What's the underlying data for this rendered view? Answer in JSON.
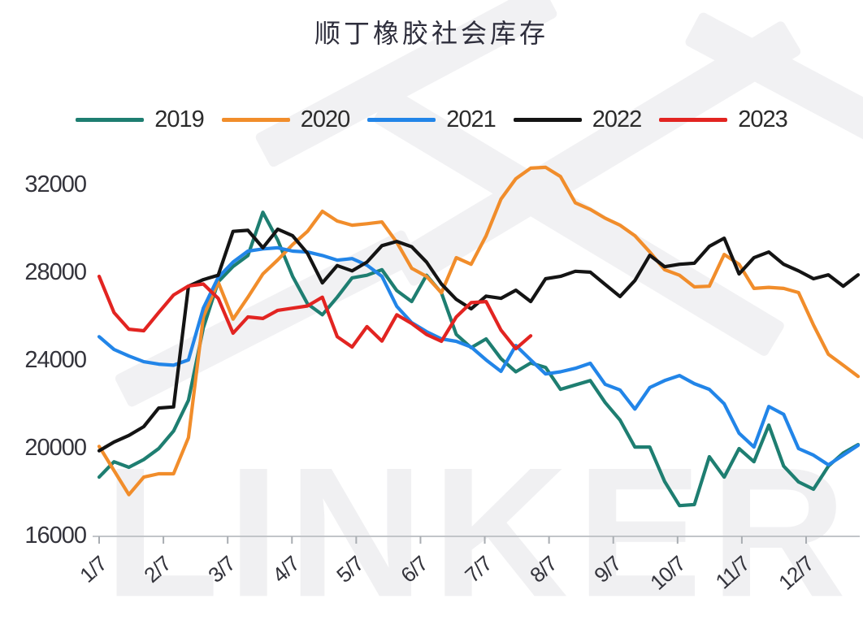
{
  "title": "顺丁橡胶社会库存",
  "watermark": {
    "text": "LINKER"
  },
  "legend": {
    "items": [
      {
        "label": "2019",
        "color": "#1e7e71"
      },
      {
        "label": "2020",
        "color": "#f18d2b"
      },
      {
        "label": "2021",
        "color": "#2285e8"
      },
      {
        "label": "2022",
        "color": "#141414"
      },
      {
        "label": "2023",
        "color": "#e22421"
      }
    ]
  },
  "y_axis": {
    "ticks": [
      "32000",
      "28000",
      "24000",
      "20000",
      "16000"
    ]
  },
  "x_axis": {
    "labels": [
      "1/7",
      "2/7",
      "3/7",
      "4/7",
      "5/7",
      "6/7",
      "7/7",
      "8/7",
      "9/7",
      "10/7",
      "11/7",
      "12/7"
    ]
  },
  "chart_data": {
    "type": "line",
    "title": "顺丁橡胶社会库存",
    "xlabel": "",
    "ylabel": "",
    "x_unit": "weekly points from Jan 7 to Dec 30; axis labeled monthly as month/7",
    "x_tick_labels": [
      "1/7",
      "2/7",
      "3/7",
      "4/7",
      "5/7",
      "6/7",
      "7/7",
      "8/7",
      "9/7",
      "10/7",
      "11/7",
      "12/7"
    ],
    "y_ticks": [
      16000,
      20000,
      24000,
      28000,
      32000
    ],
    "ylim": [
      16000,
      33000
    ],
    "grid": false,
    "legend_position": "top",
    "series": [
      {
        "name": "2019",
        "color": "#1e7e71",
        "values": [
          18700,
          19400,
          19150,
          19500,
          20000,
          20800,
          22200,
          25500,
          27600,
          28300,
          28800,
          30770,
          29500,
          27850,
          26600,
          26100,
          26900,
          27780,
          27900,
          28150,
          27200,
          26700,
          27900,
          27100,
          25200,
          24600,
          25000,
          24100,
          23500,
          23900,
          23700,
          22700,
          22900,
          23100,
          22100,
          21300,
          20070,
          20070,
          18500,
          17400,
          17450,
          19630,
          18700,
          20000,
          19400,
          21070,
          19200,
          18480,
          18150,
          19200,
          19800,
          20180
        ]
      },
      {
        "name": "2020",
        "color": "#f18d2b",
        "values": [
          20100,
          19000,
          17900,
          18700,
          18850,
          18850,
          20500,
          26000,
          27590,
          25900,
          26900,
          27960,
          28600,
          29300,
          29900,
          30815,
          30370,
          30180,
          30250,
          30330,
          29400,
          28220,
          27850,
          27100,
          28700,
          28400,
          29700,
          31370,
          32300,
          32780,
          32820,
          32400,
          31200,
          30900,
          30500,
          30180,
          29700,
          28960,
          28150,
          27900,
          27370,
          27400,
          28850,
          28400,
          27300,
          27350,
          27300,
          27110,
          25630,
          24300,
          23800,
          23290
        ]
      },
      {
        "name": "2021",
        "color": "#2285e8",
        "values": [
          25100,
          24520,
          24220,
          23960,
          23850,
          23800,
          24040,
          26400,
          27800,
          28500,
          29000,
          29100,
          29150,
          29000,
          28960,
          28800,
          28590,
          28660,
          28360,
          27850,
          26480,
          25740,
          25330,
          25000,
          24890,
          24630,
          24040,
          23520,
          24700,
          24040,
          23400,
          23500,
          23660,
          23890,
          22930,
          22670,
          21800,
          22780,
          23100,
          23330,
          22960,
          22700,
          22040,
          20700,
          20070,
          21920,
          21560,
          20000,
          19700,
          19260,
          19700,
          20150
        ]
      },
      {
        "name": "2022",
        "color": "#141414",
        "values": [
          19900,
          20300,
          20600,
          21000,
          21850,
          21900,
          27400,
          27700,
          27900,
          29900,
          29950,
          29150,
          30000,
          29700,
          28900,
          27550,
          28340,
          28100,
          28500,
          29250,
          29440,
          29200,
          28500,
          27500,
          26800,
          26370,
          26950,
          26850,
          27220,
          26700,
          27740,
          27850,
          28080,
          28040,
          27480,
          26930,
          27660,
          28810,
          28290,
          28400,
          28450,
          29220,
          29590,
          27960,
          28700,
          28960,
          28400,
          28100,
          27740,
          27920,
          27400,
          27920
        ]
      },
      {
        "name": "2023",
        "color": "#e22421",
        "values": [
          27850,
          26200,
          25440,
          25370,
          26200,
          27000,
          27410,
          27500,
          26850,
          25260,
          26000,
          25930,
          26300,
          26400,
          26500,
          26900,
          25100,
          24630,
          25560,
          24900,
          26100,
          25700,
          25200,
          24890,
          26000,
          26650,
          26700,
          25400,
          24550,
          25140
        ]
      }
    ]
  }
}
